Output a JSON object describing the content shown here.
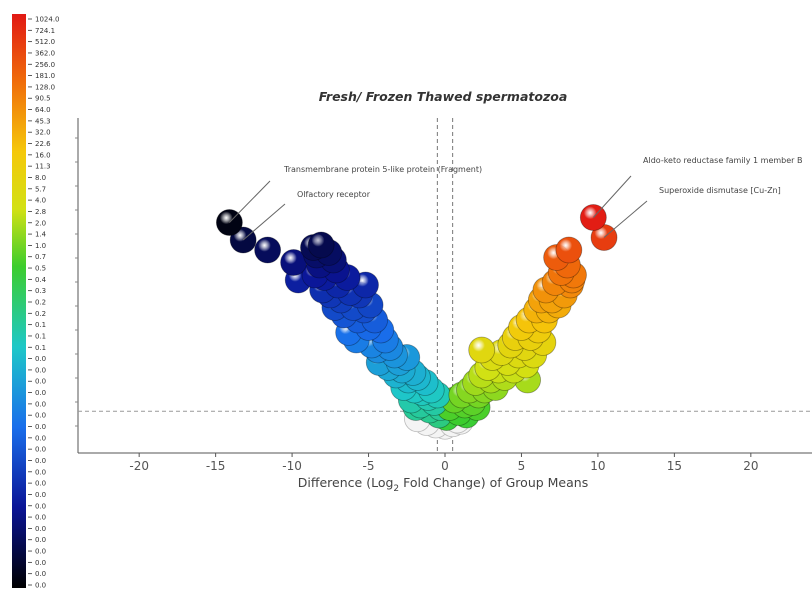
{
  "chart_data": {
    "type": "scatter",
    "title": "Fresh/ Frozen Thawed spermatozoa",
    "xlabel_prefix": "Difference (Log",
    "xlabel_sub": "2",
    "xlabel_suffix": " Fold Change) of Group Means",
    "xlim": [
      -24,
      24
    ],
    "xticks": [
      -20,
      -15,
      -10,
      -5,
      0,
      5,
      10,
      15,
      20
    ],
    "colorbar_labels": [
      "1024.0",
      "724.1",
      "512.0",
      "362.0",
      "256.0",
      "181.0",
      "128.0",
      "90.5",
      "64.0",
      "45.3",
      "32.0",
      "22.6",
      "16.0",
      "11.3",
      "8.0",
      "5.7",
      "4.0",
      "2.8",
      "2.0",
      "1.4",
      "1.0",
      "0.7",
      "0.5",
      "0.4",
      "0.3",
      "0.2",
      "0.2",
      "0.1",
      "0.1",
      "0.1",
      "0.0",
      "0.0",
      "0.0",
      "0.0",
      "0.0",
      "0.0",
      "0.0",
      "0.0",
      "0.0",
      "0.0",
      "0.0",
      "0.0",
      "0.0",
      "0.0",
      "0.0",
      "0.0",
      "0.0",
      "0.0",
      "0.0",
      "0.0",
      "0.0"
    ],
    "annotations": [
      {
        "text": "Transmembrane protein 5-like protein (Fragment)",
        "x": -14.1,
        "y": 8.3
      },
      {
        "text": "Olfactory receptor",
        "x": -13.2,
        "y": 7.6
      },
      {
        "text": "Aldo-keto reductase family 1 member B",
        "x": 9.7,
        "y": 8.5
      },
      {
        "text": "Superoxide dismutase [Cu-Zn]",
        "x": 10.4,
        "y": 7.7
      }
    ],
    "points": [
      {
        "x": -14.1,
        "y": 8.3
      },
      {
        "x": -13.2,
        "y": 7.6
      },
      {
        "x": -11.6,
        "y": 7.2
      },
      {
        "x": -9.9,
        "y": 6.7
      },
      {
        "x": -9.6,
        "y": 6.0
      },
      {
        "x": -8.6,
        "y": 7.3
      },
      {
        "x": -8.1,
        "y": 7.4
      },
      {
        "x": -8.4,
        "y": 7.0
      },
      {
        "x": -7.6,
        "y": 7.1
      },
      {
        "x": -8.2,
        "y": 6.6
      },
      {
        "x": -7.3,
        "y": 6.8
      },
      {
        "x": -8.5,
        "y": 6.2
      },
      {
        "x": -7.9,
        "y": 6.1
      },
      {
        "x": -7.1,
        "y": 6.4
      },
      {
        "x": -8.0,
        "y": 5.6
      },
      {
        "x": -7.5,
        "y": 5.4
      },
      {
        "x": -7.0,
        "y": 5.8
      },
      {
        "x": -6.8,
        "y": 5.2
      },
      {
        "x": -6.4,
        "y": 6.1
      },
      {
        "x": -6.2,
        "y": 5.5
      },
      {
        "x": -7.2,
        "y": 4.9
      },
      {
        "x": -6.6,
        "y": 4.6
      },
      {
        "x": -6.0,
        "y": 4.9
      },
      {
        "x": -5.6,
        "y": 5.4
      },
      {
        "x": -5.2,
        "y": 5.8
      },
      {
        "x": -5.7,
        "y": 4.4
      },
      {
        "x": -5.3,
        "y": 4.8
      },
      {
        "x": -4.9,
        "y": 5.0
      },
      {
        "x": -6.3,
        "y": 3.9
      },
      {
        "x": -5.8,
        "y": 3.6
      },
      {
        "x": -5.0,
        "y": 4.1
      },
      {
        "x": -4.6,
        "y": 4.4
      },
      {
        "x": -4.2,
        "y": 4.0
      },
      {
        "x": -4.8,
        "y": 3.4
      },
      {
        "x": -4.4,
        "y": 3.2
      },
      {
        "x": -3.9,
        "y": 3.6
      },
      {
        "x": -3.6,
        "y": 3.3
      },
      {
        "x": -4.3,
        "y": 2.7
      },
      {
        "x": -3.7,
        "y": 2.5
      },
      {
        "x": -3.3,
        "y": 3.0
      },
      {
        "x": -3.0,
        "y": 2.7
      },
      {
        "x": -3.2,
        "y": 2.2
      },
      {
        "x": -2.8,
        "y": 2.4
      },
      {
        "x": -2.5,
        "y": 2.9
      },
      {
        "x": -2.4,
        "y": 2.0
      },
      {
        "x": -2.1,
        "y": 2.3
      },
      {
        "x": -2.7,
        "y": 1.7
      },
      {
        "x": -2.0,
        "y": 1.6
      },
      {
        "x": -1.8,
        "y": 2.1
      },
      {
        "x": -1.5,
        "y": 1.5
      },
      {
        "x": -1.3,
        "y": 1.9
      },
      {
        "x": -1.1,
        "y": 1.3
      },
      {
        "x": -0.9,
        "y": 1.6
      },
      {
        "x": -0.7,
        "y": 1.1
      },
      {
        "x": -0.5,
        "y": 1.4
      },
      {
        "x": -0.3,
        "y": 0.9
      },
      {
        "x": -1.6,
        "y": 1.0
      },
      {
        "x": -1.0,
        "y": 0.8
      },
      {
        "x": -0.4,
        "y": 0.6
      },
      {
        "x": 0.1,
        "y": 0.5
      },
      {
        "x": -2.2,
        "y": 1.2
      },
      {
        "x": -1.9,
        "y": 0.9
      },
      {
        "x": 0.3,
        "y": 0.9
      },
      {
        "x": 0.6,
        "y": 1.2
      },
      {
        "x": 0.9,
        "y": 0.7
      },
      {
        "x": 1.1,
        "y": 1.4
      },
      {
        "x": 1.3,
        "y": 1.0
      },
      {
        "x": 1.6,
        "y": 1.6
      },
      {
        "x": 1.8,
        "y": 1.1
      },
      {
        "x": 2.0,
        "y": 1.9
      },
      {
        "x": 2.2,
        "y": 1.4
      },
      {
        "x": 2.4,
        "y": 2.2
      },
      {
        "x": 2.6,
        "y": 1.6
      },
      {
        "x": 2.8,
        "y": 2.5
      },
      {
        "x": 3.0,
        "y": 2.0
      },
      {
        "x": 3.1,
        "y": 2.9
      },
      {
        "x": 3.3,
        "y": 1.7
      },
      {
        "x": 2.4,
        "y": 3.2
      },
      {
        "x": 3.5,
        "y": 2.4
      },
      {
        "x": 3.7,
        "y": 3.1
      },
      {
        "x": 3.9,
        "y": 2.1
      },
      {
        "x": 4.1,
        "y": 2.7
      },
      {
        "x": 4.3,
        "y": 3.4
      },
      {
        "x": 4.5,
        "y": 2.4
      },
      {
        "x": 4.6,
        "y": 3.7
      },
      {
        "x": 4.8,
        "y": 3.0
      },
      {
        "x": 5.0,
        "y": 4.1
      },
      {
        "x": 5.2,
        "y": 3.3
      },
      {
        "x": 5.3,
        "y": 2.6
      },
      {
        "x": 5.5,
        "y": 4.4
      },
      {
        "x": 5.6,
        "y": 3.7
      },
      {
        "x": 5.8,
        "y": 3.0
      },
      {
        "x": 6.0,
        "y": 4.8
      },
      {
        "x": 6.1,
        "y": 4.0
      },
      {
        "x": 6.3,
        "y": 5.2
      },
      {
        "x": 6.5,
        "y": 4.4
      },
      {
        "x": 6.6,
        "y": 5.6
      },
      {
        "x": 6.8,
        "y": 4.8
      },
      {
        "x": 7.0,
        "y": 5.2
      },
      {
        "x": 7.2,
        "y": 5.9
      },
      {
        "x": 7.4,
        "y": 5.0
      },
      {
        "x": 7.6,
        "y": 6.3
      },
      {
        "x": 7.8,
        "y": 5.4
      },
      {
        "x": 8.0,
        "y": 6.6
      },
      {
        "x": 8.2,
        "y": 5.8
      },
      {
        "x": 8.4,
        "y": 6.2
      },
      {
        "x": 7.3,
        "y": 6.9
      },
      {
        "x": 8.1,
        "y": 7.2
      },
      {
        "x": 8.3,
        "y": 6.0
      },
      {
        "x": 6.4,
        "y": 3.5
      },
      {
        "x": 5.4,
        "y": 2.0
      },
      {
        "x": 1.4,
        "y": 0.6
      },
      {
        "x": 0.8,
        "y": 0.4
      },
      {
        "x": 2.1,
        "y": 0.9
      },
      {
        "x": 9.7,
        "y": 8.5
      },
      {
        "x": 10.4,
        "y": 7.7
      },
      {
        "x": -1.2,
        "y": 0.3
      },
      {
        "x": -0.6,
        "y": 0.2
      },
      {
        "x": 0.0,
        "y": 0.15
      },
      {
        "x": 0.5,
        "y": 0.25
      },
      {
        "x": 1.0,
        "y": 0.35
      },
      {
        "x": -1.8,
        "y": 0.45
      }
    ]
  }
}
